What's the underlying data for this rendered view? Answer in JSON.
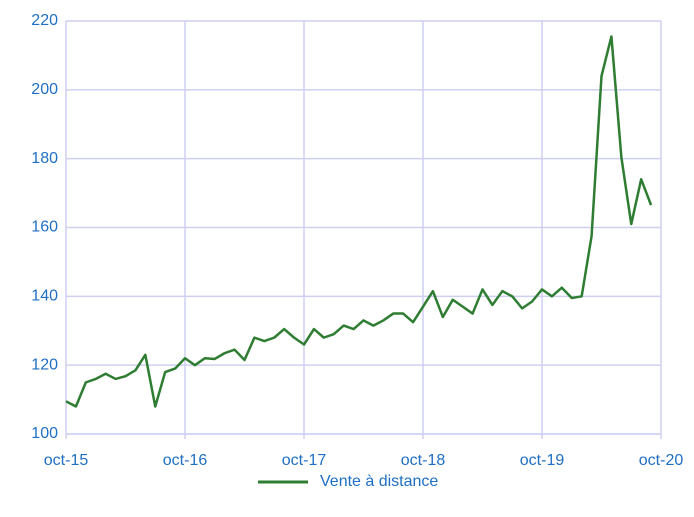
{
  "chart_data": {
    "type": "line",
    "categories": [
      "oct-15",
      null,
      null,
      null,
      null,
      null,
      null,
      null,
      null,
      null,
      null,
      null,
      "oct-16",
      null,
      null,
      null,
      null,
      null,
      null,
      null,
      null,
      null,
      null,
      null,
      "oct-17",
      null,
      null,
      null,
      null,
      null,
      null,
      null,
      null,
      null,
      null,
      null,
      "oct-18",
      null,
      null,
      null,
      null,
      null,
      null,
      null,
      null,
      null,
      null,
      null,
      "oct-19",
      null,
      null,
      null,
      null,
      null,
      null,
      null,
      null,
      null,
      null,
      null,
      "oct-20"
    ],
    "series": [
      {
        "name": "Vente à distance",
        "color": "#2e7d32",
        "values": [
          109.5,
          108,
          115,
          116,
          117.5,
          116,
          116.8,
          118.5,
          123,
          108,
          118,
          119,
          122,
          120,
          122,
          121.8,
          123.5,
          124.5,
          121.5,
          128,
          127,
          128,
          130.5,
          128,
          126,
          130.5,
          128,
          129,
          131.5,
          130.5,
          133,
          131.5,
          133,
          135,
          135,
          132.5,
          137,
          141.5,
          134,
          139,
          137,
          135,
          142,
          137.5,
          141.5,
          140,
          136.5,
          138.5,
          142,
          140,
          142.5,
          139.5,
          140,
          157.5,
          204,
          215.5,
          180.5,
          161,
          174,
          166.5,
          null
        ]
      }
    ],
    "ylim": [
      100,
      220
    ],
    "yticks": [
      100,
      120,
      140,
      160,
      180,
      200,
      220
    ],
    "grid": true,
    "legend": "bottom"
  }
}
